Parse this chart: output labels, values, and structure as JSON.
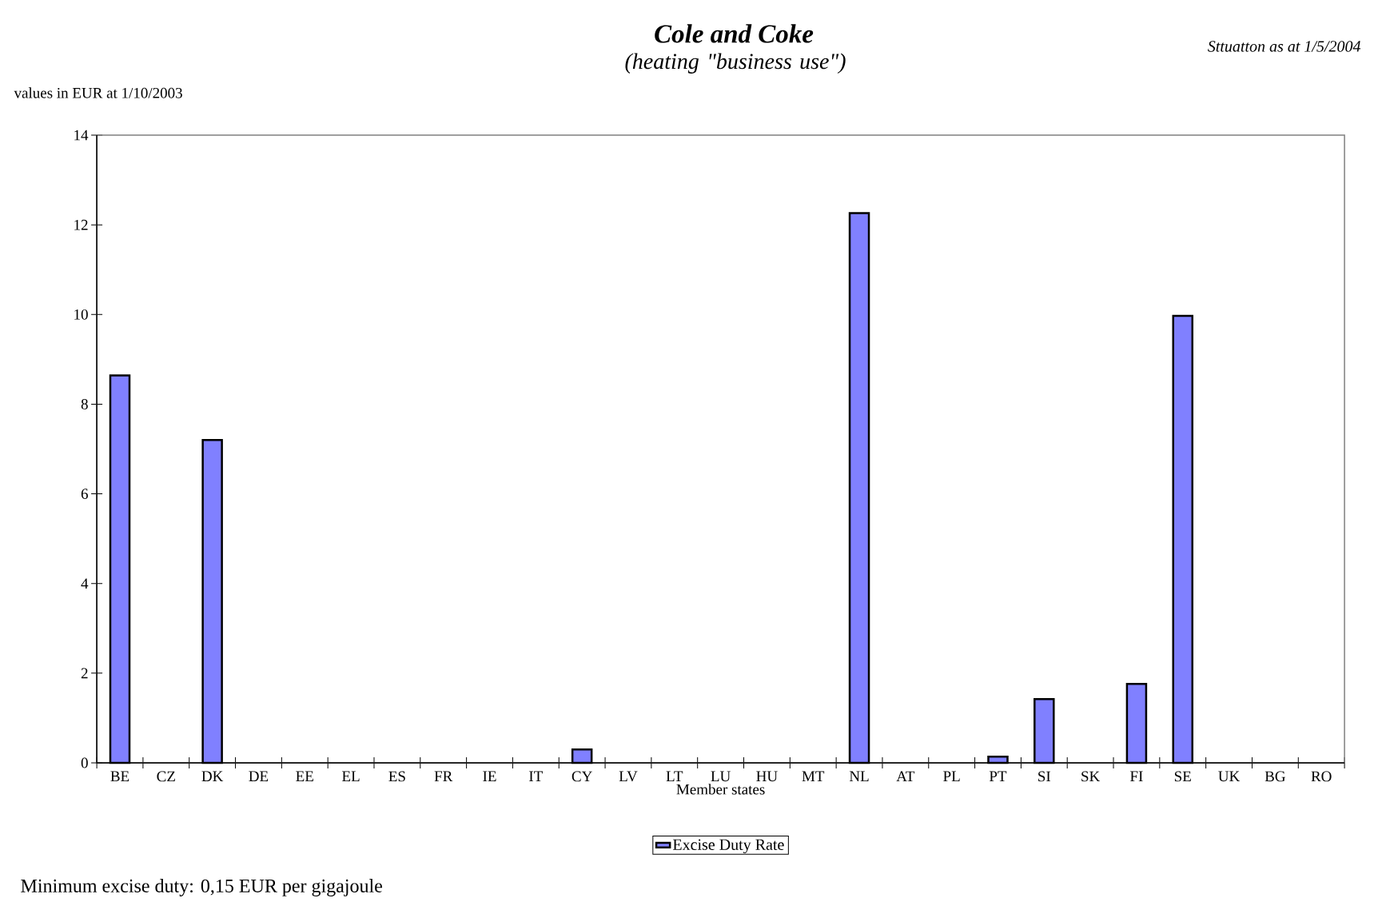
{
  "chart_data": {
    "type": "bar",
    "title": "Cole and Coke",
    "subtitle": "(heating \"business use\")",
    "xlabel": "Member states",
    "ylabel": "values in EUR at 1/10/2003",
    "annotations": [
      "Sttuatton as at 1/5/2004",
      "Minimum excise duty: 0,15 EUR per gigajoule"
    ],
    "categories": [
      "BE",
      "CZ",
      "DK",
      "DE",
      "EE",
      "EL",
      "ES",
      "FR",
      "IE",
      "IT",
      "CY",
      "LV",
      "LT",
      "LU",
      "HU",
      "MT",
      "NL",
      "AT",
      "PL",
      "PT",
      "SI",
      "SK",
      "FI",
      "SE",
      "UK",
      "BG",
      "RO"
    ],
    "series": [
      {
        "name": "Excise Duty Rate",
        "color": "#8080ff",
        "values": [
          8.64,
          null,
          7.2,
          null,
          null,
          null,
          null,
          null,
          null,
          null,
          0.3,
          null,
          null,
          null,
          null,
          null,
          12.26,
          null,
          null,
          0.14,
          1.42,
          null,
          1.76,
          9.97,
          null,
          null,
          null
        ]
      }
    ],
    "ylim": [
      0,
      14
    ],
    "yticks": [
      0,
      2,
      4,
      6,
      8,
      10,
      12,
      14
    ],
    "legend": "bottom"
  }
}
